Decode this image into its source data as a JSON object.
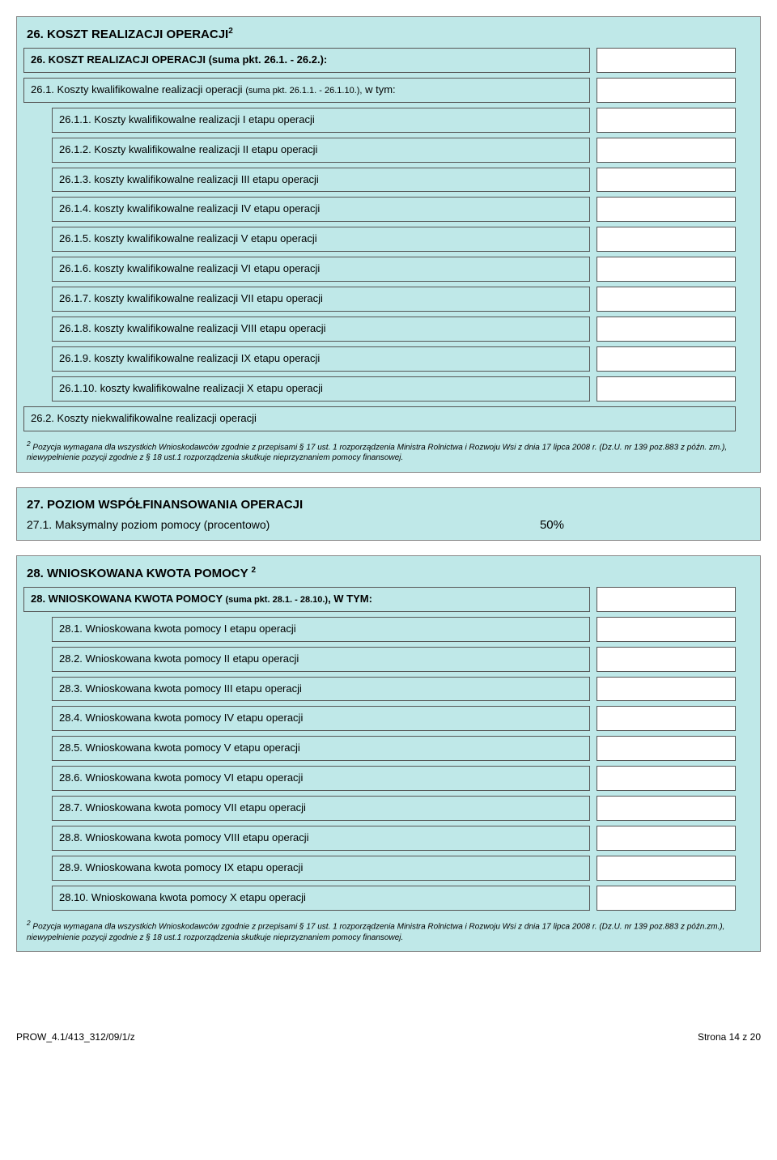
{
  "colors": {
    "section_bg": "#bfe8e8",
    "border": "#555555",
    "value_bg": "#ffffff"
  },
  "section26": {
    "title": "26. KOSZT REALIZACJI OPERACJI",
    "title_sup": "2",
    "header_row": "26. KOSZT REALIZACJI OPERACJI (suma pkt. 26.1. - 26.2.):",
    "row_261": "26.1. Koszty kwalifikowalne realizacji operacji (suma pkt. 26.1.1. - 26.1.10.),  w tym:",
    "items": [
      "26.1.1. Koszty kwalifikowalne realizacji I etapu operacji",
      "26.1.2. Koszty kwalifikowalne realizacji II etapu operacji",
      "26.1.3. koszty kwalifikowalne realizacji III etapu operacji",
      "26.1.4. koszty kwalifikowalne realizacji IV etapu operacji",
      "26.1.5. koszty kwalifikowalne realizacji V etapu operacji",
      "26.1.6. koszty kwalifikowalne realizacji VI etapu operacji",
      "26.1.7. koszty kwalifikowalne realizacji VII etapu operacji",
      "26.1.8. koszty kwalifikowalne realizacji VIII etapu operacji",
      "26.1.9. koszty kwalifikowalne realizacji IX etapu operacji",
      "26.1.10. koszty kwalifikowalne realizacji X etapu operacji"
    ],
    "row_262": "26.2. Koszty niekwalifikowalne realizacji operacji",
    "footnote_sup": "2",
    "footnote": " Pozycja wymagana dla wszystkich Wnioskodawców zgodnie z przepisami § 17 ust. 1 rozporządzenia Ministra Rolnictwa i Rozwoju Wsi z dnia 17 lipca 2008 r. (Dz.U. nr 139 poz.883 z późn. zm.), niewypełnienie pozycji zgodnie z § 18 ust.1 rozporządzenia skutkuje nieprzyznaniem pomocy finansowej."
  },
  "section27": {
    "title": "27. POZIOM WSPÓŁFINANSOWANIA OPERACJI",
    "row": "27.1. Maksymalny poziom pomocy (procentowo)",
    "value": "50%"
  },
  "section28": {
    "title": "28. WNIOSKOWANA KWOTA POMOCY ",
    "title_sup": "2",
    "header_row": "28. WNIOSKOWANA KWOTA POMOCY (suma pkt. 28.1. - 28.10.), W TYM:",
    "items": [
      "28.1. Wnioskowana kwota pomocy I etapu operacji",
      "28.2. Wnioskowana kwota pomocy II etapu operacji",
      "28.3. Wnioskowana kwota pomocy III etapu operacji",
      "28.4. Wnioskowana kwota pomocy IV etapu operacji",
      "28.5. Wnioskowana kwota pomocy V etapu operacji",
      "28.6. Wnioskowana kwota pomocy VI etapu operacji",
      "28.7. Wnioskowana kwota pomocy VII etapu operacji",
      "28.8. Wnioskowana kwota pomocy VIII etapu operacji",
      "28.9. Wnioskowana kwota pomocy IX etapu operacji",
      "28.10. Wnioskowana kwota pomocy X etapu operacji"
    ],
    "footnote_sup": "2",
    "footnote": " Pozycja wymagana dla wszystkich Wnioskodawców zgodnie z przepisami § 17 ust. 1 rozporządzenia Ministra Rolnictwa i Rozwoju Wsi z dnia 17 lipca 2008 r. (Dz.U. nr 139 poz.883 z późn.zm.), niewypełnienie pozycji zgodnie z § 18 ust.1 rozporządzenia skutkuje nieprzyznaniem pomocy finansowej."
  },
  "footer": {
    "left": "PROW_4.1/413_312/09/1/z",
    "right": "Strona 14 z 20"
  }
}
